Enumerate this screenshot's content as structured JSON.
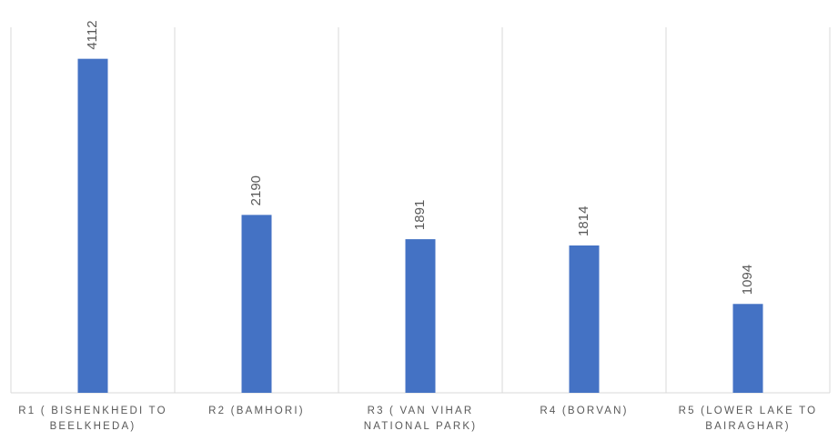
{
  "chart_data": {
    "type": "bar",
    "categories": [
      "R1 ( BISHENKHEDI TO BEELKHEDA)",
      "R2 (BAMHORI)",
      "R3 ( VAN VIHAR NATIONAL PARK)",
      "R4 (BORVAN)",
      "R5 (LOWER LAKE TO BAIRAGHAR)"
    ],
    "values": [
      4112,
      2190,
      1891,
      1814,
      1094
    ],
    "color": "#4472c4",
    "ylim": [
      0,
      4500
    ]
  }
}
